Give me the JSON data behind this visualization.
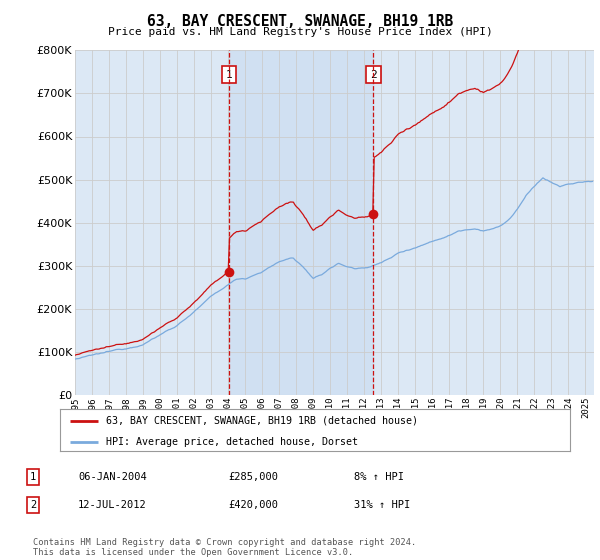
{
  "title": "63, BAY CRESCENT, SWANAGE, BH19 1RB",
  "subtitle": "Price paid vs. HM Land Registry's House Price Index (HPI)",
  "legend_line1": "63, BAY CRESCENT, SWANAGE, BH19 1RB (detached house)",
  "legend_line2": "HPI: Average price, detached house, Dorset",
  "sale1_date": "06-JAN-2004",
  "sale1_price": "£285,000",
  "sale1_hpi": "8% ↑ HPI",
  "sale1_year": 2004.04,
  "sale1_value": 285000,
  "sale2_date": "12-JUL-2012",
  "sale2_price": "£420,000",
  "sale2_hpi": "31% ↑ HPI",
  "sale2_year": 2012.54,
  "sale2_value": 420000,
  "background_color": "#ffffff",
  "plot_bg_color": "#dce8f5",
  "shade_color": "#c8dcf0",
  "grid_color": "#cccccc",
  "red_color": "#cc1111",
  "blue_color": "#7aaadd",
  "dashed_color": "#cc1111",
  "footer": "Contains HM Land Registry data © Crown copyright and database right 2024.\nThis data is licensed under the Open Government Licence v3.0.",
  "ylim": [
    0,
    800000
  ],
  "yticks": [
    0,
    100000,
    200000,
    300000,
    400000,
    500000,
    600000,
    700000,
    800000
  ],
  "xlim_start": 1995.0,
  "xlim_end": 2025.5
}
